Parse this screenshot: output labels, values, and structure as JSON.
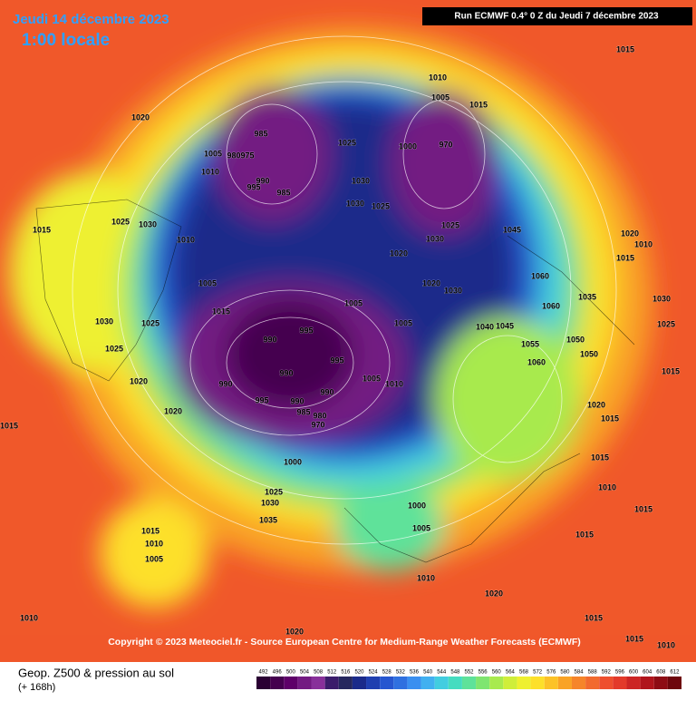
{
  "header": {
    "date": "Jeudi 14 décembre 2023",
    "time": "1:00 locale",
    "run": "Run ECMWF 0.4° 0 Z du Jeudi 7 décembre 2023"
  },
  "map": {
    "isobar_labels": [
      1020,
      985,
      1005,
      980,
      975,
      1010,
      995,
      990,
      985,
      1025,
      1030,
      1030,
      1025,
      1010,
      1005,
      1015,
      1000,
      970,
      1025,
      1030,
      1045,
      1020,
      1020,
      1030,
      1060,
      1005,
      1015,
      1025,
      1030,
      1025,
      1020,
      1020,
      1015,
      1005,
      1005,
      995,
      990,
      995,
      990,
      990,
      995,
      990,
      990,
      985,
      980,
      970,
      1000,
      1005,
      1010,
      1040,
      1045,
      1055,
      1060,
      1050,
      1050,
      1035,
      1060,
      1015,
      1020,
      1010,
      1015,
      1030,
      1025,
      1015,
      1020,
      1015,
      1015,
      1010,
      1015,
      1015,
      1025,
      1030,
      1035,
      1000,
      1005,
      1015,
      1010,
      1005,
      1010,
      1020,
      1010,
      1020,
      1015,
      1015,
      1010,
      1025,
      1015,
      1030,
      1010
    ]
  },
  "copyright": "Copyright © 2023 Meteociel.fr - Source European Centre for Medium-Range Weather Forecasts (ECMWF)",
  "legend": {
    "title": "Geop. Z500 & pression au sol",
    "subtitle": "(+ 168h)",
    "ticks": [
      492,
      496,
      500,
      504,
      508,
      512,
      516,
      520,
      524,
      528,
      532,
      536,
      540,
      544,
      548,
      552,
      556,
      560,
      564,
      568,
      572,
      576,
      580,
      584,
      588,
      592,
      596,
      600,
      604,
      608,
      612
    ],
    "colors": [
      "#2a0033",
      "#45004f",
      "#5e0069",
      "#731a82",
      "#88309a",
      "#3b1c6b",
      "#25275e",
      "#1a2a8a",
      "#1f3fb0",
      "#2656d0",
      "#2f70e0",
      "#3a8ff0",
      "#41b0f0",
      "#42cde0",
      "#45dcc0",
      "#5ee29a",
      "#7fe570",
      "#a8ea4e",
      "#cfee3a",
      "#eef030",
      "#fde02a",
      "#fcc227",
      "#f9a325",
      "#f6852a",
      "#f26a2e",
      "#ee4f2e",
      "#e33a2a",
      "#cc2524",
      "#b0151c",
      "#8e0c14",
      "#6e060c"
    ]
  }
}
